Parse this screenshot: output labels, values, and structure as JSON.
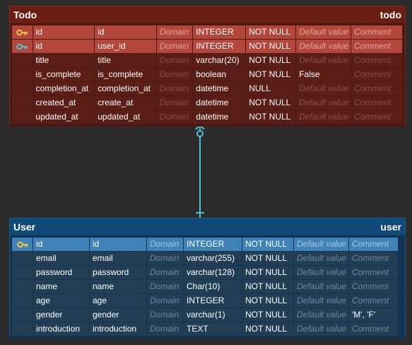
{
  "colors": {
    "todo_header": "#6b1f12",
    "todo_pk_row": "#b4473c",
    "user_header": "#0f4a78",
    "user_pk_row": "#3f82b7",
    "relation_line": "#4fc3d4",
    "pk_key": "#f2c744",
    "fk_key": "#4fc3d4"
  },
  "todo": {
    "logical_name": "Todo",
    "physical_name": "todo",
    "rows": [
      {
        "key": "pk-key-icon",
        "logical": "id",
        "physical": "id",
        "domain": "Domain",
        "type": "INTEGER",
        "not_null": "NOT NULL",
        "default": "Default value",
        "comment": "Comment"
      },
      {
        "key": "fk-key-icon",
        "logical": "id",
        "physical": "user_id",
        "domain": "Domain",
        "type": "INTEGER",
        "not_null": "NOT NULL",
        "default": "Default value",
        "comment": "Comment"
      },
      {
        "key": "",
        "logical": "title",
        "physical": "title",
        "domain": "Domain",
        "type": "varchar(20)",
        "not_null": "NOT NULL",
        "default": "Default value",
        "comment": "Comment"
      },
      {
        "key": "",
        "logical": "is_complete",
        "physical": "is_complete",
        "domain": "Domain",
        "type": "boolean",
        "not_null": "NOT NULL",
        "default": "False",
        "comment": "Comment"
      },
      {
        "key": "",
        "logical": "completion_at",
        "physical": "completion_at",
        "domain": "Domain",
        "type": "datetime",
        "not_null": "NULL",
        "default": "Default value",
        "comment": "Comment"
      },
      {
        "key": "",
        "logical": "created_at",
        "physical": "create_at",
        "domain": "Domain",
        "type": "datetime",
        "not_null": "NOT NULL",
        "default": "Default value",
        "comment": "Comment"
      },
      {
        "key": "",
        "logical": "updated_at",
        "physical": "updated_at",
        "domain": "Domain",
        "type": "datetime",
        "not_null": "NOT NULL",
        "default": "Default value",
        "comment": "Comment"
      }
    ]
  },
  "user": {
    "logical_name": "User",
    "physical_name": "user",
    "rows": [
      {
        "key": "pk-key-icon",
        "logical": "id",
        "physical": "id",
        "domain": "Domain",
        "type": "INTEGER",
        "not_null": "NOT NULL",
        "default": "Default value",
        "comment": "Comment"
      },
      {
        "key": "",
        "logical": "email",
        "physical": "email",
        "domain": "Domain",
        "type": "varchar(255)",
        "not_null": "NOT NULL",
        "default": "Default value",
        "comment": "Comment"
      },
      {
        "key": "",
        "logical": "password",
        "physical": "password",
        "domain": "Domain",
        "type": "varchar(128)",
        "not_null": "NOT NULL",
        "default": "Default value",
        "comment": "Comment"
      },
      {
        "key": "",
        "logical": "name",
        "physical": "name",
        "domain": "Domain",
        "type": "Char(10)",
        "not_null": "NOT NULL",
        "default": "Default value",
        "comment": "Comment"
      },
      {
        "key": "",
        "logical": "age",
        "physical": "age",
        "domain": "Domain",
        "type": "INTEGER",
        "not_null": "NOT NULL",
        "default": "Default value",
        "comment": "Comment"
      },
      {
        "key": "",
        "logical": "gender",
        "physical": "gender",
        "domain": "Domain",
        "type": "varchar(1)",
        "not_null": "NOT NULL",
        "default": "Default value",
        "comment": "'M', 'F'"
      },
      {
        "key": "",
        "logical": "introduction",
        "physical": "introduction",
        "domain": "Domain",
        "type": "TEXT",
        "not_null": "NOT NULL",
        "default": "Default value",
        "comment": "Comment"
      }
    ]
  },
  "relationship": {
    "from": "todo",
    "to": "user",
    "from_cardinality": "zero-or-many",
    "to_cardinality": "exactly-one"
  }
}
